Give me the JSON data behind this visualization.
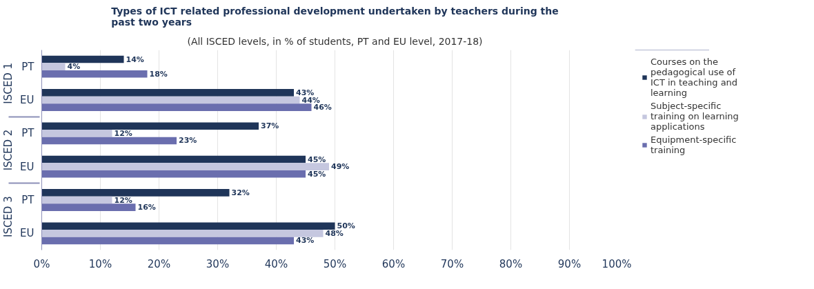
{
  "chart_data": {
    "type": "bar",
    "orientation": "horizontal",
    "title": "Types of ICT related professional development undertaken by teachers during the past two years",
    "subtitle": "(All ISCED levels, in % of students, PT and EU level, 2017-18)",
    "categories": [
      "PT",
      "EU",
      "PT",
      "EU",
      "PT",
      "EU"
    ],
    "annotations": [
      "ISCED 1",
      "ISCED 2",
      "ISCED 3"
    ],
    "series": [
      {
        "name": "Courses on the pedagogical use of ICT in teaching and learning",
        "color": "#1f3559",
        "values": [
          14,
          43,
          37,
          45,
          32,
          50
        ],
        "value_labels": [
          "14%",
          "43%",
          "37%",
          "45%",
          "32%",
          "50%"
        ]
      },
      {
        "name": "Subject-specific training on learning applications",
        "color": "#c5c7df",
        "values": [
          4,
          44,
          12,
          49,
          12,
          48
        ],
        "value_labels": [
          "4%",
          "44%",
          "12%",
          "49%",
          "12%",
          "48%"
        ]
      },
      {
        "name": "Equipment-specific training",
        "color": "#6a6eae",
        "values": [
          18,
          46,
          23,
          45,
          16,
          43
        ],
        "value_labels": [
          "18%",
          "46%",
          "23%",
          "45%",
          "16%",
          "43%"
        ]
      }
    ],
    "xlim": [
      0,
      100
    ],
    "xticks": [
      {
        "value": 0,
        "label": "0%"
      },
      {
        "value": 10,
        "label": "10%"
      },
      {
        "value": 20,
        "label": "20%"
      },
      {
        "value": 30,
        "label": "30%"
      },
      {
        "value": 40,
        "label": "40%"
      },
      {
        "value": 50,
        "label": "50%"
      },
      {
        "value": 60,
        "label": "60%"
      },
      {
        "value": 70,
        "label": "70%"
      },
      {
        "value": 80,
        "label": "80%"
      },
      {
        "value": 90,
        "label": "90%"
      },
      {
        "value": 100,
        "label": "100%"
      }
    ],
    "grid": "x",
    "legend": "right"
  }
}
